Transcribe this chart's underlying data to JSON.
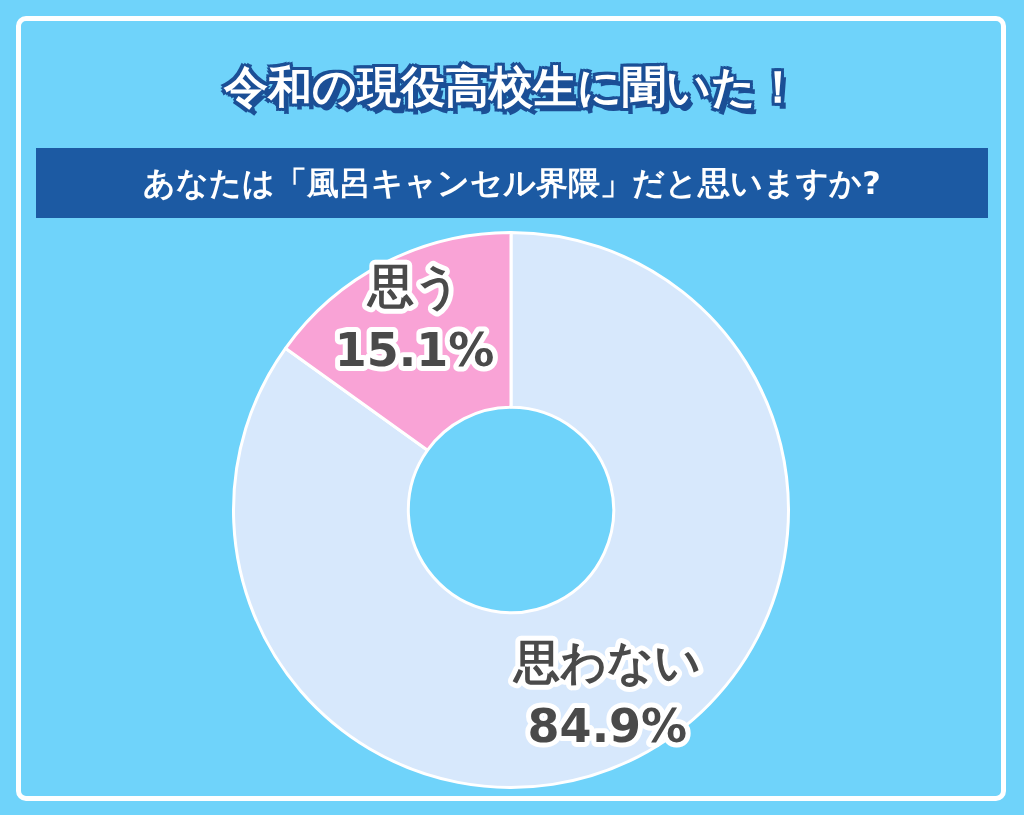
{
  "chart_data": {
    "type": "donut",
    "title": "令和の現役高校生に聞いた！",
    "subtitle": "あなたは「風呂キャンセル界隈」だと思いますか?",
    "categories": [
      "思わない",
      "思う"
    ],
    "values": [
      84.9,
      15.1
    ],
    "colors": [
      "#d7e8fc",
      "#f9a3d6"
    ],
    "value_labels": [
      "84.9%",
      "15.1%"
    ],
    "legend": false
  }
}
